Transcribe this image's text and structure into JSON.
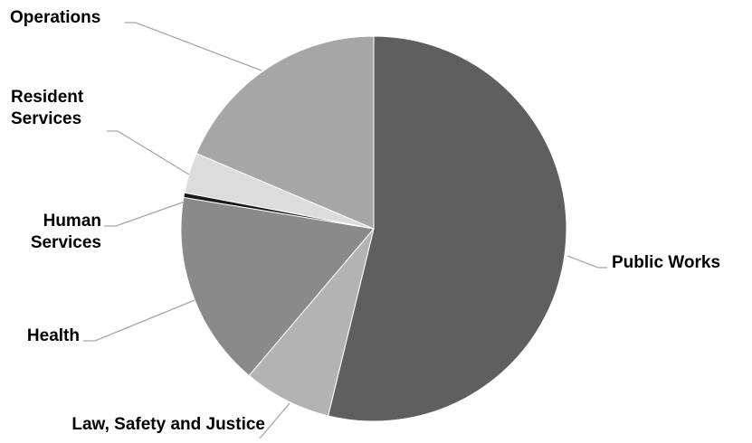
{
  "chart_data": {
    "type": "pie",
    "title": "",
    "start_angle_deg": 0,
    "direction": "clockwise",
    "slices": [
      {
        "label": "Public Works",
        "value": 53.8,
        "color": "#5f5f5f"
      },
      {
        "label": "Law, Safety and Justice",
        "value": 7.4,
        "color": "#b3b3b3"
      },
      {
        "label": "Health",
        "value": 16.4,
        "color": "#8a8a8a"
      },
      {
        "label": "Human Services",
        "value": 0.4,
        "color": "#1a1a1a"
      },
      {
        "label": "Resident Services",
        "value": 3.4,
        "color": "#dcdcdc"
      },
      {
        "label": "Operations",
        "value": 18.6,
        "color": "#a6a6a6"
      }
    ],
    "label_lines": {
      "Public Works": [
        "Public Works"
      ],
      "Law, Safety and Justice": [
        "Law, Safety and Justice"
      ],
      "Health": [
        "Health"
      ],
      "Human Services": [
        "Human",
        "Services"
      ],
      "Resident Services": [
        "Resident",
        "Services"
      ],
      "Operations": [
        "Operations"
      ]
    },
    "legend": "none",
    "leader_line_color": "#a6a6a6"
  }
}
